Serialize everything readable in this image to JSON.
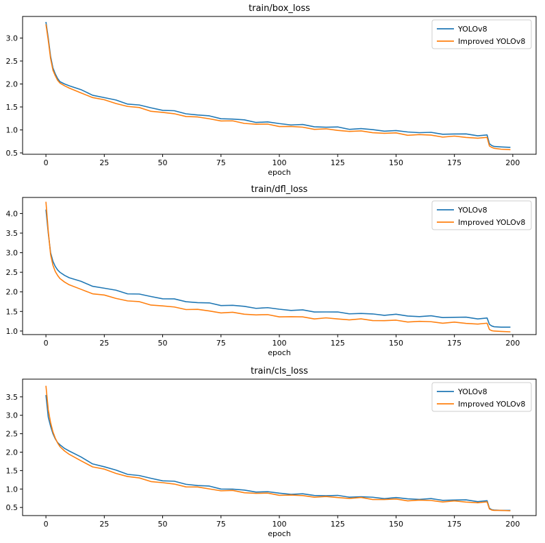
{
  "chart_data": [
    {
      "type": "line",
      "title": "train/box_loss",
      "xlabel": "epoch",
      "ylabel": "",
      "xlim": [
        -10,
        210
      ],
      "ylim": [
        0.47,
        3.47
      ],
      "xticks": [
        0,
        25,
        50,
        75,
        100,
        125,
        150,
        175,
        200
      ],
      "yticks": [
        0.5,
        1.0,
        1.5,
        2.0,
        2.5,
        3.0
      ],
      "ytick_labels": [
        "0.5",
        "1.0",
        "1.5",
        "2.0",
        "2.5",
        "3.0"
      ],
      "legend": "top-right",
      "series": [
        {
          "name": "YOLOv8",
          "color": "#1f77b4",
          "x": [
            0,
            1,
            2,
            3,
            4,
            5,
            6,
            8,
            10,
            15,
            20,
            25,
            30,
            35,
            40,
            45,
            50,
            55,
            60,
            65,
            70,
            75,
            80,
            85,
            90,
            95,
            100,
            105,
            110,
            115,
            120,
            125,
            130,
            135,
            140,
            145,
            150,
            155,
            160,
            165,
            170,
            175,
            180,
            185,
            189,
            190,
            191,
            192,
            195,
            199
          ],
          "values": [
            3.35,
            3.0,
            2.6,
            2.35,
            2.22,
            2.12,
            2.05,
            2.0,
            1.96,
            1.86,
            1.77,
            1.7,
            1.64,
            1.58,
            1.53,
            1.48,
            1.44,
            1.4,
            1.36,
            1.33,
            1.29,
            1.26,
            1.23,
            1.21,
            1.18,
            1.16,
            1.14,
            1.12,
            1.1,
            1.08,
            1.06,
            1.05,
            1.03,
            1.02,
            1.0,
            0.99,
            0.97,
            0.96,
            0.95,
            0.93,
            0.92,
            0.91,
            0.9,
            0.89,
            0.88,
            0.7,
            0.66,
            0.64,
            0.63,
            0.62
          ]
        },
        {
          "name": "Improved YOLOv8",
          "color": "#ff7f0e",
          "x": [
            0,
            1,
            2,
            3,
            4,
            5,
            6,
            8,
            10,
            15,
            20,
            25,
            30,
            35,
            40,
            45,
            50,
            55,
            60,
            65,
            70,
            75,
            80,
            85,
            90,
            95,
            100,
            105,
            110,
            115,
            120,
            125,
            130,
            135,
            140,
            145,
            150,
            155,
            160,
            165,
            170,
            175,
            180,
            185,
            189,
            190,
            191,
            192,
            195,
            199
          ],
          "values": [
            3.3,
            2.95,
            2.55,
            2.3,
            2.18,
            2.08,
            2.02,
            1.96,
            1.91,
            1.8,
            1.72,
            1.64,
            1.58,
            1.52,
            1.47,
            1.42,
            1.38,
            1.34,
            1.31,
            1.27,
            1.24,
            1.21,
            1.18,
            1.15,
            1.13,
            1.11,
            1.09,
            1.07,
            1.05,
            1.03,
            1.01,
            0.99,
            0.98,
            0.96,
            0.95,
            0.93,
            0.92,
            0.9,
            0.89,
            0.88,
            0.86,
            0.85,
            0.84,
            0.83,
            0.82,
            0.65,
            0.62,
            0.6,
            0.58,
            0.57
          ]
        }
      ]
    },
    {
      "type": "line",
      "title": "train/dfl_loss",
      "xlabel": "epoch",
      "ylabel": "",
      "xlim": [
        -10,
        210
      ],
      "ylim": [
        0.91,
        4.41
      ],
      "xticks": [
        0,
        25,
        50,
        75,
        100,
        125,
        150,
        175,
        200
      ],
      "yticks": [
        1.0,
        1.5,
        2.0,
        2.5,
        3.0,
        3.5,
        4.0
      ],
      "ytick_labels": [
        "1.0",
        "1.5",
        "2.0",
        "2.5",
        "3.0",
        "3.5",
        "4.0"
      ],
      "legend": "top-right",
      "series": [
        {
          "name": "YOLOv8",
          "color": "#1f77b4",
          "x": [
            0,
            1,
            2,
            3,
            4,
            5,
            6,
            8,
            10,
            15,
            20,
            25,
            30,
            35,
            40,
            45,
            50,
            55,
            60,
            65,
            70,
            75,
            80,
            85,
            90,
            95,
            100,
            105,
            110,
            115,
            120,
            125,
            130,
            135,
            140,
            145,
            150,
            155,
            160,
            165,
            170,
            175,
            180,
            185,
            189,
            190,
            191,
            192,
            195,
            199
          ],
          "values": [
            4.1,
            3.5,
            3.0,
            2.78,
            2.65,
            2.56,
            2.5,
            2.42,
            2.36,
            2.25,
            2.16,
            2.09,
            2.03,
            1.97,
            1.93,
            1.88,
            1.84,
            1.8,
            1.76,
            1.73,
            1.7,
            1.67,
            1.65,
            1.62,
            1.6,
            1.58,
            1.56,
            1.54,
            1.52,
            1.5,
            1.49,
            1.47,
            1.46,
            1.44,
            1.43,
            1.42,
            1.41,
            1.39,
            1.38,
            1.37,
            1.36,
            1.35,
            1.34,
            1.33,
            1.32,
            1.17,
            1.13,
            1.11,
            1.1,
            1.1
          ]
        },
        {
          "name": "Improved YOLOv8",
          "color": "#ff7f0e",
          "x": [
            0,
            1,
            2,
            3,
            4,
            5,
            6,
            8,
            10,
            15,
            20,
            25,
            30,
            35,
            40,
            45,
            50,
            55,
            60,
            65,
            70,
            75,
            80,
            85,
            90,
            95,
            100,
            105,
            110,
            115,
            120,
            125,
            130,
            135,
            140,
            145,
            150,
            155,
            160,
            165,
            170,
            175,
            180,
            185,
            189,
            190,
            191,
            192,
            195,
            199
          ],
          "values": [
            4.3,
            3.55,
            2.95,
            2.68,
            2.52,
            2.42,
            2.34,
            2.25,
            2.18,
            2.06,
            1.97,
            1.9,
            1.84,
            1.78,
            1.73,
            1.68,
            1.64,
            1.6,
            1.57,
            1.54,
            1.51,
            1.48,
            1.46,
            1.44,
            1.42,
            1.4,
            1.38,
            1.36,
            1.35,
            1.33,
            1.32,
            1.31,
            1.3,
            1.29,
            1.28,
            1.27,
            1.26,
            1.25,
            1.24,
            1.23,
            1.22,
            1.21,
            1.2,
            1.19,
            1.18,
            1.04,
            1.01,
            1.0,
            0.99,
            0.98
          ]
        }
      ]
    },
    {
      "type": "line",
      "title": "train/cls_loss",
      "xlabel": "epoch",
      "ylabel": "",
      "xlim": [
        -10,
        210
      ],
      "ylim": [
        0.28,
        3.98
      ],
      "xticks": [
        0,
        25,
        50,
        75,
        100,
        125,
        150,
        175,
        200
      ],
      "yticks": [
        0.5,
        1.0,
        1.5,
        2.0,
        2.5,
        3.0,
        3.5
      ],
      "ytick_labels": [
        "0.5",
        "1.0",
        "1.5",
        "2.0",
        "2.5",
        "3.0",
        "3.5"
      ],
      "legend": "top-right",
      "series": [
        {
          "name": "YOLOv8",
          "color": "#1f77b4",
          "x": [
            0,
            1,
            2,
            3,
            4,
            5,
            6,
            8,
            10,
            15,
            20,
            25,
            30,
            35,
            40,
            45,
            50,
            55,
            60,
            65,
            70,
            75,
            80,
            85,
            90,
            95,
            100,
            105,
            110,
            115,
            120,
            125,
            130,
            135,
            140,
            145,
            150,
            155,
            160,
            165,
            170,
            175,
            180,
            185,
            189,
            190,
            191,
            192,
            195,
            199
          ],
          "values": [
            3.55,
            2.95,
            2.7,
            2.5,
            2.36,
            2.26,
            2.2,
            2.1,
            2.03,
            1.85,
            1.7,
            1.6,
            1.5,
            1.42,
            1.35,
            1.29,
            1.24,
            1.19,
            1.14,
            1.1,
            1.06,
            1.02,
            0.99,
            0.96,
            0.94,
            0.91,
            0.89,
            0.87,
            0.85,
            0.84,
            0.82,
            0.81,
            0.8,
            0.78,
            0.77,
            0.76,
            0.75,
            0.74,
            0.73,
            0.72,
            0.71,
            0.7,
            0.69,
            0.68,
            0.67,
            0.48,
            0.44,
            0.43,
            0.42,
            0.42
          ]
        },
        {
          "name": "Improved YOLOv8",
          "color": "#ff7f0e",
          "x": [
            0,
            1,
            2,
            3,
            4,
            5,
            6,
            8,
            10,
            15,
            20,
            25,
            30,
            35,
            40,
            45,
            50,
            55,
            60,
            65,
            70,
            75,
            80,
            85,
            90,
            95,
            100,
            105,
            110,
            115,
            120,
            125,
            130,
            135,
            140,
            145,
            150,
            155,
            160,
            165,
            170,
            175,
            180,
            185,
            189,
            190,
            191,
            192,
            195,
            199
          ],
          "values": [
            3.8,
            3.15,
            2.8,
            2.55,
            2.38,
            2.25,
            2.15,
            2.03,
            1.94,
            1.76,
            1.62,
            1.52,
            1.43,
            1.35,
            1.28,
            1.22,
            1.17,
            1.12,
            1.08,
            1.04,
            1.0,
            0.97,
            0.94,
            0.91,
            0.89,
            0.87,
            0.85,
            0.83,
            0.81,
            0.8,
            0.78,
            0.77,
            0.76,
            0.75,
            0.73,
            0.72,
            0.71,
            0.7,
            0.69,
            0.68,
            0.67,
            0.66,
            0.65,
            0.64,
            0.63,
            0.46,
            0.43,
            0.42,
            0.42,
            0.41
          ]
        }
      ]
    }
  ]
}
